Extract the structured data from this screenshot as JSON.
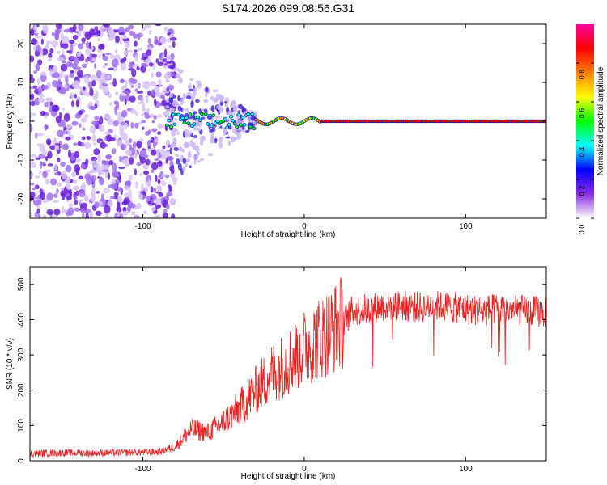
{
  "title": "S174.2026.099.08.56.G31",
  "colors": {
    "snr_line": "#ee2222",
    "colormap": [
      "#ffffff",
      "#8a2be2",
      "#0000ff",
      "#00ffff",
      "#00ff00",
      "#ffff00",
      "#ff8000",
      "#ff0000",
      "#ff00a0"
    ]
  },
  "chart_data": [
    {
      "type": "heatmap",
      "title": "S174.2026.099.08.56.G31",
      "xlabel": "Height of straight line (km)",
      "ylabel": "Frequency (Hz)",
      "xlim": [
        -170,
        150
      ],
      "ylim": [
        -25,
        25
      ],
      "xticks": [
        -100,
        0,
        100
      ],
      "yticks": [
        -20,
        -10,
        0,
        10,
        20
      ],
      "xtick_labels": [
        "-100",
        "0",
        "100"
      ],
      "ytick_labels": [
        "-20",
        "-10",
        "0",
        "10",
        "20"
      ],
      "colorbar": {
        "label": "Normalized spectral amplitude",
        "range": [
          0,
          1
        ],
        "ticks": [
          0.0,
          0.2,
          0.4,
          0.6,
          0.8
        ],
        "tick_labels": [
          "0.0",
          "0.2",
          "0.4",
          "0.6",
          "0.8"
        ]
      },
      "description_points": {
        "noise_region_x": [
          -170,
          -85
        ],
        "transition_region_x": [
          -85,
          -30
        ],
        "carrier_frequency_hz": 0,
        "carrier_start_x": -30
      }
    },
    {
      "type": "line",
      "xlabel": "Height of straight line (km)",
      "ylabel": "SNR (10 * v/v)",
      "xlim": [
        -170,
        150
      ],
      "ylim": [
        0,
        550
      ],
      "xticks": [
        -100,
        0,
        100
      ],
      "yticks": [
        0,
        100,
        200,
        300,
        400,
        500
      ],
      "xtick_labels": [
        "-100",
        "0",
        "100"
      ],
      "ytick_labels": [
        "0",
        "100",
        "200",
        "300",
        "400",
        "500"
      ],
      "series": [
        {
          "name": "SNR",
          "x": [
            -170,
            -150,
            -130,
            -110,
            -90,
            -80,
            -70,
            -60,
            -50,
            -40,
            -30,
            -20,
            -10,
            0,
            10,
            20,
            25,
            30,
            40,
            50,
            60,
            70,
            80,
            90,
            100,
            110,
            120,
            130,
            140,
            150
          ],
          "values": [
            20,
            22,
            22,
            23,
            25,
            40,
            90,
            80,
            110,
            150,
            200,
            250,
            280,
            320,
            350,
            380,
            400,
            425,
            430,
            440,
            440,
            435,
            440,
            435,
            430,
            425,
            430,
            425,
            425,
            420
          ]
        }
      ]
    }
  ]
}
